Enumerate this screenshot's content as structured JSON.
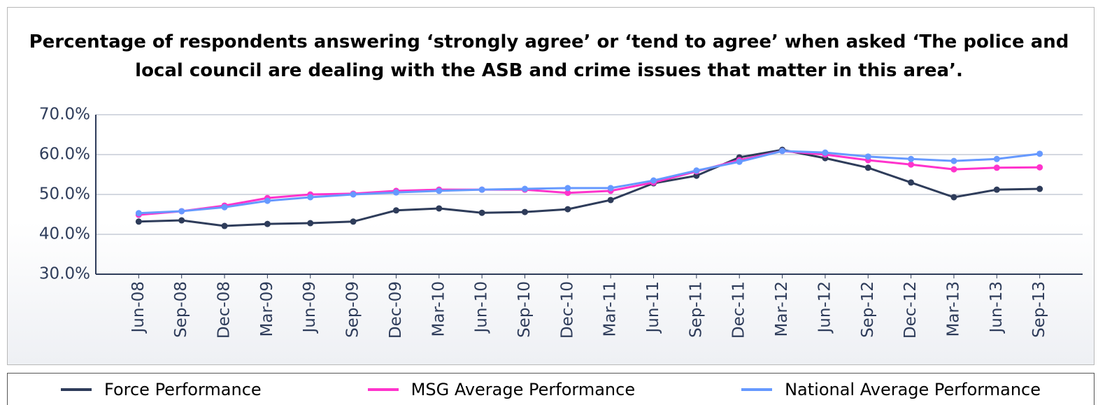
{
  "chart_data": {
    "type": "line",
    "title": "Percentage of respondents answering ‘strongly agree’ or ‘tend to agree’ when asked ‘The police and local council are dealing with the ASB and crime issues that matter in this area’.",
    "categories": [
      "Jun-08",
      "Sep-08",
      "Dec-08",
      "Mar-09",
      "Jun-09",
      "Sep-09",
      "Dec-09",
      "Mar-10",
      "Jun-10",
      "Sep-10",
      "Dec-10",
      "Mar-11",
      "Jun-11",
      "Sep-11",
      "Dec-11",
      "Mar-12",
      "Jun-12",
      "Sep-12",
      "Dec-12",
      "Mar-13",
      "Jun-13",
      "Sep-13"
    ],
    "series": [
      {
        "name": "Force Performance",
        "color": "#2e3c5a",
        "values": [
          43.2,
          43.5,
          42.1,
          42.6,
          42.8,
          43.2,
          46.0,
          46.5,
          45.4,
          45.6,
          46.3,
          48.6,
          52.8,
          54.7,
          59.3,
          61.2,
          59.1,
          56.7,
          53.0,
          49.3,
          51.2,
          51.4
        ]
      },
      {
        "name": "MSG Average Performance",
        "color": "#ff33cc",
        "values": [
          44.9,
          45.8,
          47.2,
          49.1,
          50.0,
          50.2,
          50.9,
          51.2,
          51.2,
          51.2,
          50.4,
          50.9,
          53.0,
          55.8,
          58.6,
          60.9,
          60.0,
          58.6,
          57.5,
          56.3,
          56.7,
          56.8
        ]
      },
      {
        "name": "National Average Performance",
        "color": "#6699ff",
        "values": [
          45.3,
          45.8,
          46.8,
          48.4,
          49.3,
          50.0,
          50.5,
          50.9,
          51.2,
          51.4,
          51.6,
          51.6,
          53.5,
          56.0,
          58.2,
          60.9,
          60.5,
          59.5,
          58.9,
          58.4,
          58.9,
          60.2
        ]
      }
    ],
    "ylim": [
      30,
      70
    ],
    "yticks": [
      {
        "value": 30,
        "label": "30.0%"
      },
      {
        "value": 40,
        "label": "40.0%"
      },
      {
        "value": 50,
        "label": "50.0%"
      },
      {
        "value": 60,
        "label": "60.0%"
      },
      {
        "value": 70,
        "label": "70.0%"
      }
    ],
    "grid": true,
    "legend": "bottom"
  }
}
